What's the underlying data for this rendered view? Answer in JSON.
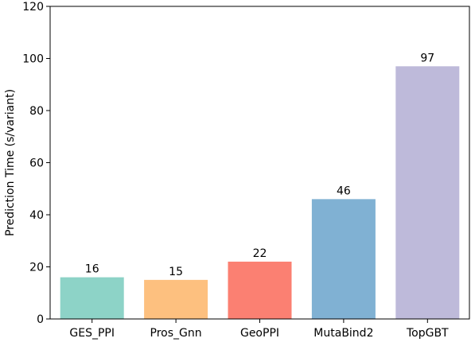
{
  "chart_data": {
    "type": "bar",
    "title": "",
    "xlabel": "",
    "ylabel": "Prediction Time (s/variant)",
    "categories": [
      "GES_PPI",
      "Pros_Gnn",
      "GeoPPI",
      "MutaBind2",
      "TopGBT"
    ],
    "values": [
      16,
      15,
      22,
      46,
      97
    ],
    "data_labels": [
      "16",
      "15",
      "22",
      "46",
      "97"
    ],
    "colors": [
      "#8dd3c7",
      "#fdc07f",
      "#fb8072",
      "#80b1d3",
      "#bebada"
    ],
    "ylim": [
      0,
      120
    ],
    "yticks": [
      0,
      20,
      40,
      60,
      80,
      100,
      120
    ],
    "ytick_labels": [
      "0",
      "20",
      "40",
      "60",
      "80",
      "100",
      "120"
    ],
    "grid": false,
    "legend": "none"
  }
}
